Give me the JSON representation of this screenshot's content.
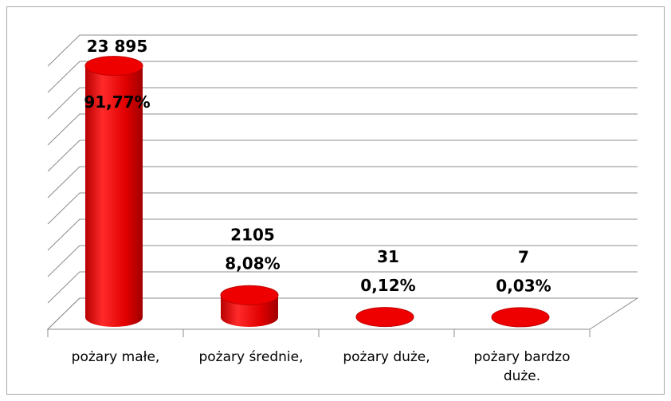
{
  "chart_data": {
    "type": "bar3d",
    "categories": [
      "pożary małe,",
      "pożary średnie,",
      "pożary duże,",
      "pożary bardzo duże."
    ],
    "series": [
      {
        "color": "#e60000",
        "values": [
          23895,
          2105,
          31,
          7
        ],
        "value_labels": [
          "23 895",
          "2105",
          "31",
          "7"
        ],
        "shares": [
          91.77,
          8.08,
          0.12,
          0.03
        ],
        "share_labels": [
          "91,77%",
          "8,08%",
          "0,12%",
          "0,03%"
        ]
      }
    ],
    "ylim": [
      0,
      25000
    ],
    "yticks": [
      0,
      2500,
      5000,
      7500,
      10000,
      12500,
      15000,
      17500,
      20000,
      22500,
      25000
    ],
    "grid": true
  }
}
